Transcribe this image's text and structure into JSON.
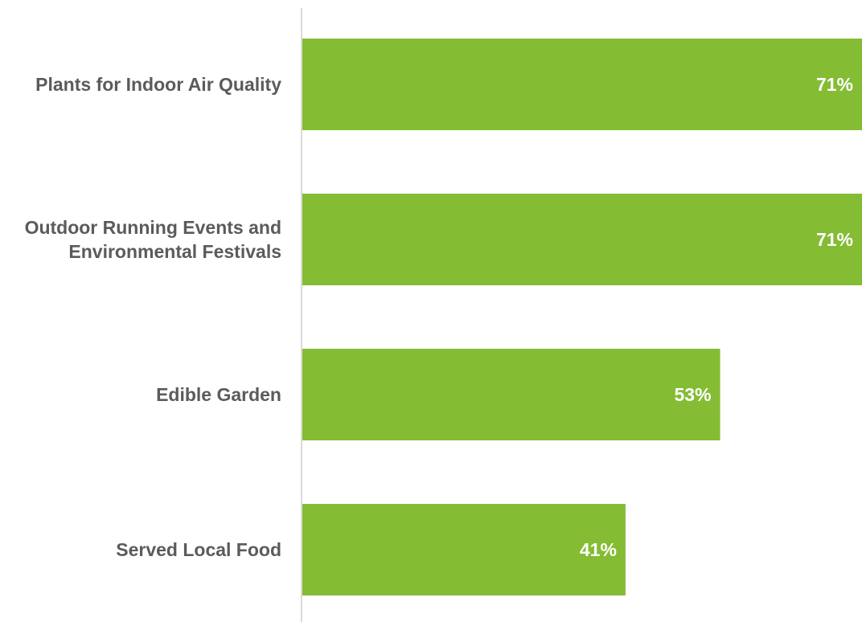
{
  "chart_data": {
    "type": "bar",
    "orientation": "horizontal",
    "categories": [
      [
        "Plants for Indoor Air Quality"
      ],
      [
        "Outdoor Running Events and",
        "Environmental Festivals"
      ],
      [
        "Edible Garden"
      ],
      [
        "Served Local Food"
      ]
    ],
    "values": [
      71,
      71,
      53,
      41
    ],
    "value_labels": [
      "71%",
      "71%",
      "53%",
      "41%"
    ],
    "value_unit": "%",
    "xlim": [
      0,
      71
    ],
    "grid": false,
    "legend": "none",
    "colors": {
      "bar": "#84bc34",
      "axis_line": "#d9d9d9",
      "category_text": "#5b5b5b",
      "value_text": "#ffffff"
    }
  }
}
